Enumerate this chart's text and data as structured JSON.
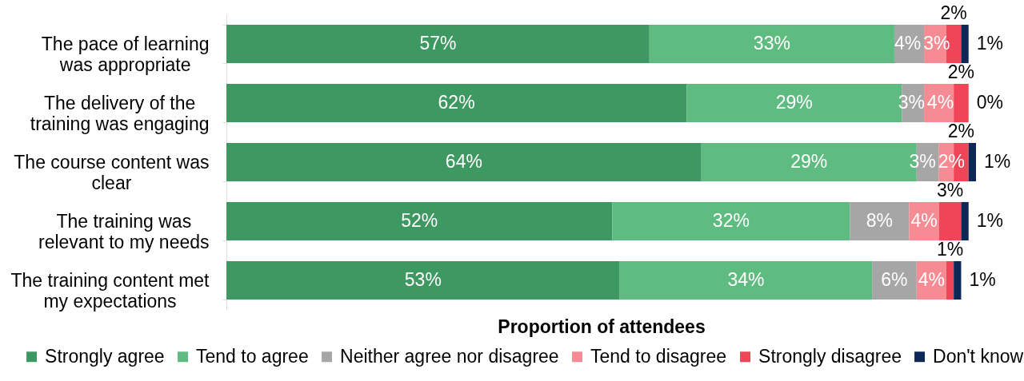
{
  "chart_data": {
    "type": "bar",
    "orientation": "horizontal",
    "stacked": true,
    "categories": [
      "The pace of learning was appropriate",
      "The delivery of the training was engaging",
      "The course content was clear",
      "The training was relevant to my needs",
      "The training content met my expectations"
    ],
    "series": [
      {
        "name": "Strongly agree",
        "color": "#3e9862",
        "values": [
          57,
          62,
          64,
          52,
          53
        ],
        "value_labels": [
          "57%",
          "62%",
          "64%",
          "52%",
          "53%"
        ]
      },
      {
        "name": "Tend to agree",
        "color": "#5fbc80",
        "values": [
          33,
          29,
          29,
          32,
          34
        ],
        "value_labels": [
          "33%",
          "29%",
          "29%",
          "32%",
          "34%"
        ]
      },
      {
        "name": "Neither agree nor disagree",
        "color": "#a6a6a6",
        "values": [
          4,
          3,
          3,
          8,
          6
        ],
        "value_labels": [
          "4%",
          "3%",
          "3%",
          "8%",
          "6%"
        ]
      },
      {
        "name": "Tend to disagree",
        "color": "#f68b93",
        "values": [
          3,
          4,
          2,
          4,
          4
        ],
        "value_labels": [
          "3%",
          "4%",
          "2%",
          "4%",
          "4%"
        ]
      },
      {
        "name": "Strongly disagree",
        "color": "#f04457",
        "values": [
          2,
          2,
          2,
          3,
          1
        ],
        "value_labels": [
          "2%",
          "2%",
          "2%",
          "3%",
          "1%"
        ]
      },
      {
        "name": "Don't know",
        "color": "#0d2857",
        "values": [
          1,
          0,
          1,
          1,
          1
        ],
        "value_labels": [
          "1%",
          "0%",
          "1%",
          "1%",
          "1%"
        ]
      }
    ],
    "xlabel": "Proportion of attendees",
    "legend": "bottom",
    "tick_labels": "y"
  }
}
